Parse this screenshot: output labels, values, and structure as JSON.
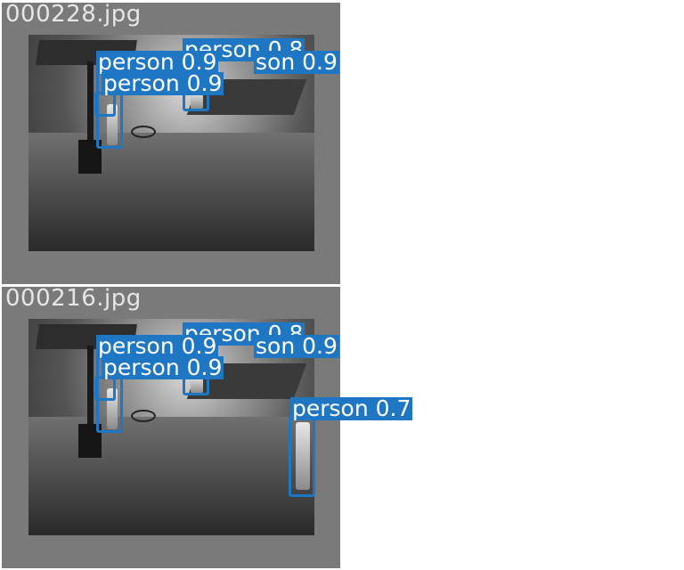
{
  "panels": [
    {
      "filename": "000228.jpg",
      "detections": [
        {
          "label": "person 0.8"
        },
        {
          "label": "person 0.9"
        },
        {
          "label": "son 0.9"
        },
        {
          "label": "person 0.9"
        }
      ]
    },
    {
      "filename": "000216.jpg",
      "detections": [
        {
          "label": "person 0.8"
        },
        {
          "label": "person 0.9"
        },
        {
          "label": "son 0.9"
        },
        {
          "label": "person 0.9"
        },
        {
          "label": "person 0.7"
        }
      ]
    }
  ],
  "colors": {
    "box": "#1f77c4",
    "label_text": "#ffffff",
    "filename_text": "#e6e6e6"
  }
}
